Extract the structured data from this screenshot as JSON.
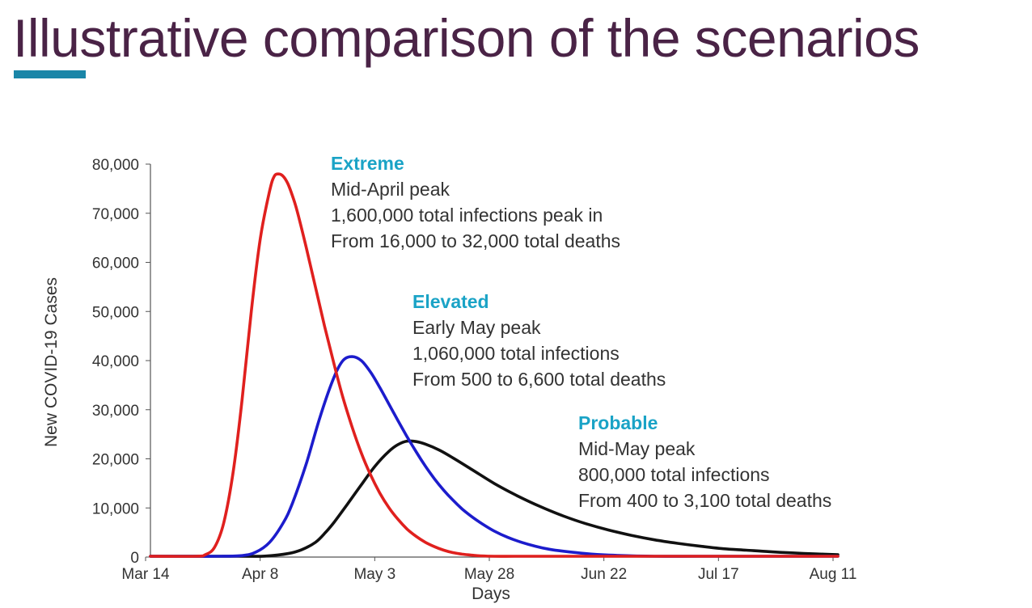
{
  "page": {
    "title": "Illustrative comparison of the scenarios"
  },
  "colors": {
    "title": "#4a2346",
    "accent": "#1a86a8",
    "annotation_title": "#1aa3c6"
  },
  "chart_data": {
    "type": "line",
    "xlabel": "Days",
    "ylabel": "New COVID-19 Cases",
    "x_tick_labels": [
      "Mar 14",
      "Apr 8",
      "May 3",
      "May 28",
      "Jun 22",
      "Jul 17",
      "Aug 11"
    ],
    "x_range_days": [
      0,
      150
    ],
    "ylim": [
      0,
      80000
    ],
    "y_ticks": [
      0,
      10000,
      20000,
      30000,
      40000,
      50000,
      60000,
      70000,
      80000
    ],
    "y_tick_labels": [
      "0",
      "10,000",
      "20,000",
      "30,000",
      "40,000",
      "50,000",
      "60,000",
      "70,000",
      "80,000"
    ],
    "series": [
      {
        "name": "Extreme",
        "color": "#e0201e",
        "x": [
          0,
          10,
          12,
          14,
          16,
          18,
          20,
          22,
          24,
          26,
          27,
          28,
          29,
          30,
          31,
          32,
          34,
          36,
          38,
          40,
          42,
          44,
          46,
          48,
          50,
          52,
          54,
          56,
          58,
          60,
          62,
          64,
          66,
          68,
          70,
          72,
          75,
          80,
          90,
          100,
          150
        ],
        "values": [
          0,
          100,
          500,
          2000,
          7000,
          17000,
          32000,
          50000,
          65000,
          74500,
          77500,
          78000,
          77500,
          76000,
          73500,
          70500,
          63000,
          55000,
          47000,
          39500,
          32500,
          26500,
          21200,
          16800,
          13100,
          10100,
          7700,
          5700,
          4200,
          3000,
          2100,
          1400,
          900,
          600,
          400,
          250,
          100,
          30,
          5,
          0,
          0
        ]
      },
      {
        "name": "Elevated",
        "color": "#1c1ccc",
        "x": [
          0,
          15,
          20,
          23,
          26,
          29,
          31,
          34,
          37,
          40,
          42,
          44,
          46,
          48,
          50,
          52,
          54,
          56,
          58,
          60,
          62,
          64,
          66,
          68,
          70,
          72,
          75,
          78,
          81,
          84,
          87,
          90,
          95,
          100,
          110,
          120,
          135,
          150
        ],
        "values": [
          0,
          50,
          300,
          1000,
          3000,
          7000,
          11000,
          19000,
          28500,
          36500,
          40000,
          40800,
          40000,
          37700,
          34600,
          31200,
          27800,
          24500,
          21400,
          18500,
          15900,
          13600,
          11600,
          9800,
          8300,
          7000,
          5300,
          4000,
          3000,
          2200,
          1600,
          1200,
          700,
          400,
          150,
          50,
          10,
          0
        ]
      },
      {
        "name": "Probable",
        "color": "#111111",
        "x": [
          0,
          20,
          25,
          30,
          33,
          36,
          38,
          40,
          43,
          46,
          49,
          52,
          54,
          56,
          58,
          60,
          63,
          66,
          70,
          75,
          80,
          85,
          90,
          95,
          100,
          105,
          110,
          115,
          120,
          125,
          130,
          135,
          140,
          145,
          150
        ],
        "values": [
          0,
          50,
          200,
          700,
          1500,
          3000,
          4800,
          7000,
          10800,
          14700,
          18500,
          21500,
          22900,
          23600,
          23500,
          23000,
          21800,
          20200,
          17900,
          15000,
          12500,
          10300,
          8400,
          6800,
          5500,
          4400,
          3500,
          2800,
          2200,
          1700,
          1400,
          1100,
          850,
          650,
          500
        ]
      }
    ],
    "annotations": [
      {
        "title": "Extreme",
        "lines": [
          "Mid-April peak",
          "1,600,000 total infections peak in",
          "From 16,000 to 32,000 total deaths"
        ]
      },
      {
        "title": "Elevated",
        "lines": [
          "Early May peak",
          "1,060,000 total infections",
          "From 500 to 6,600 total deaths"
        ]
      },
      {
        "title": "Probable",
        "lines": [
          "Mid-May peak",
          "800,000 total infections",
          "From 400 to 3,100 total deaths"
        ]
      }
    ]
  }
}
